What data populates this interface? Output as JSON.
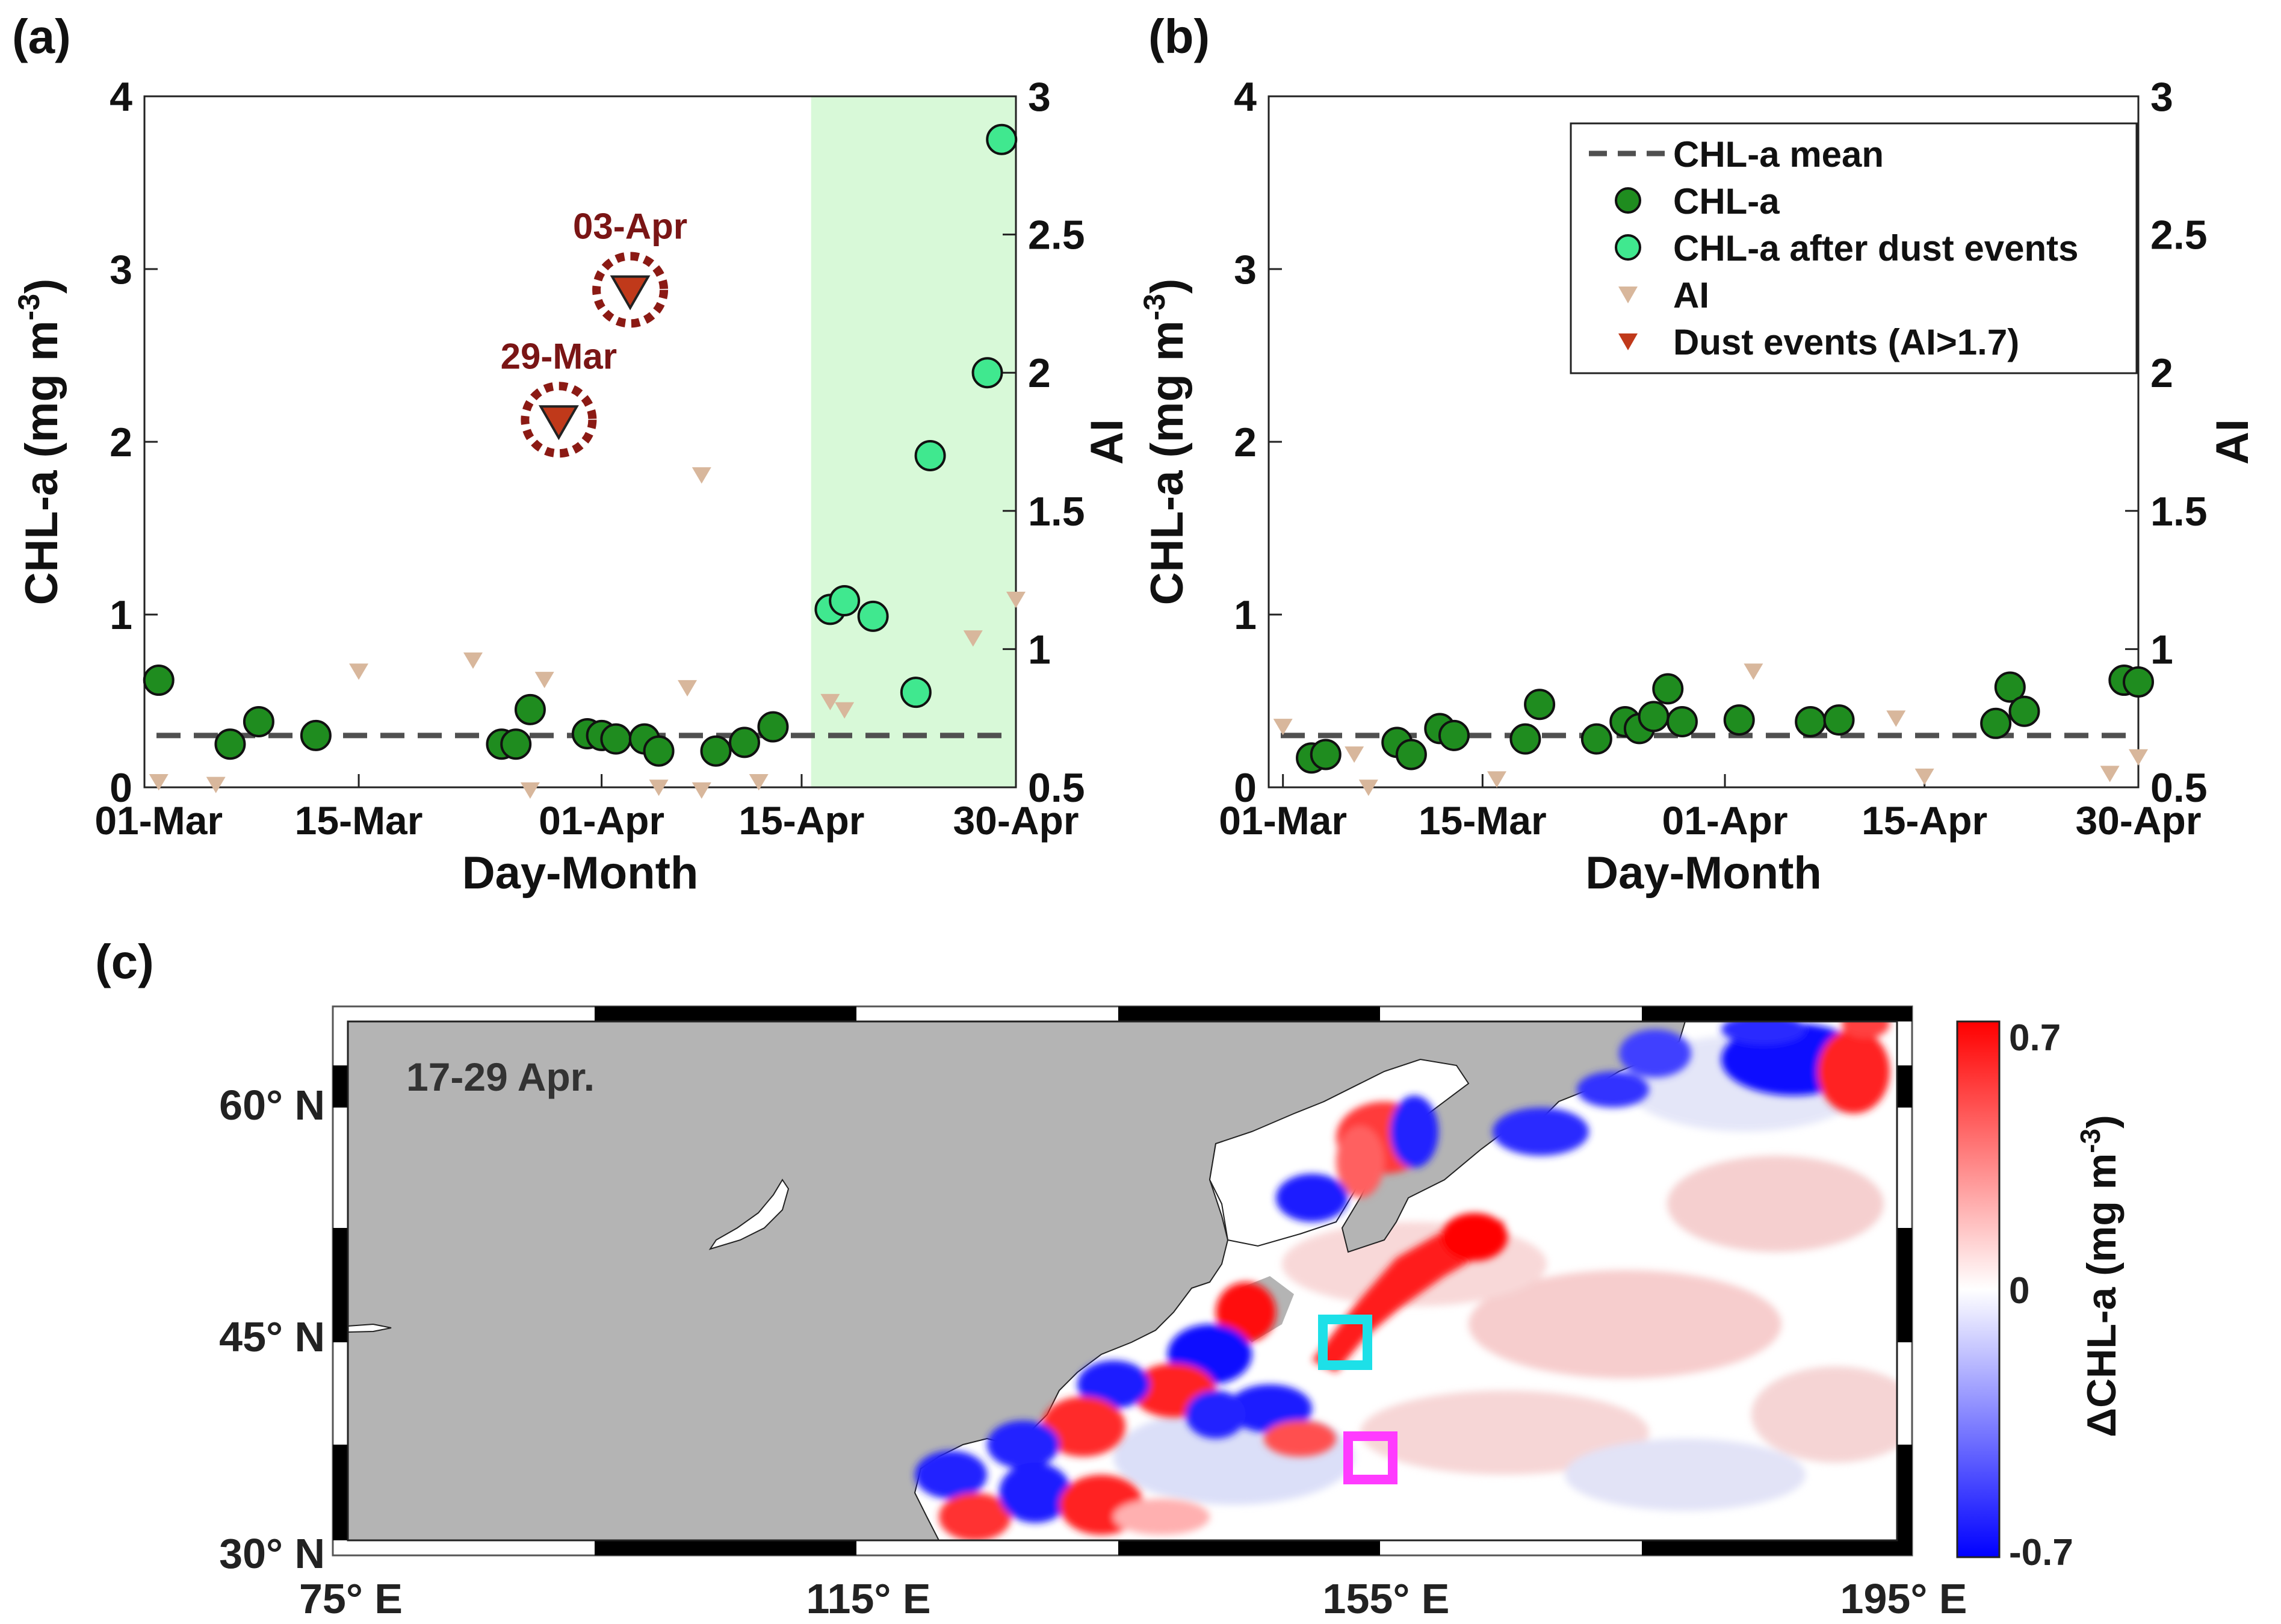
{
  "chart_data": [
    {
      "id": "a",
      "type": "scatter",
      "panel_label": "(a)",
      "xlabel": "Day-Month",
      "ylabel": "CHL-a (mg m",
      "ylabel_sup": "-3",
      "ylabel_close": ")",
      "y2label": "AI",
      "xlim": [
        0,
        61
      ],
      "ylim": [
        0,
        4
      ],
      "y2lim": [
        0.5,
        3
      ],
      "x_ticks": [
        {
          "x": 1,
          "label": "01-Mar"
        },
        {
          "x": 15,
          "label": "15-Mar"
        },
        {
          "x": 32,
          "label": "01-Apr"
        },
        {
          "x": 46,
          "label": "15-Apr"
        },
        {
          "x": 61,
          "label": "30-Apr"
        }
      ],
      "y_ticks": [
        0,
        1,
        2,
        3,
        4
      ],
      "y2_ticks": [
        0.5,
        1,
        1.5,
        2,
        2.5,
        3
      ],
      "chl_mean": 0.3,
      "shade_range": [
        47,
        61
      ],
      "chl": [
        [
          1,
          0.62
        ],
        [
          6,
          0.25
        ],
        [
          8,
          0.38
        ],
        [
          12,
          0.3
        ],
        [
          25,
          0.25
        ],
        [
          26,
          0.25
        ],
        [
          27,
          0.45
        ],
        [
          31,
          0.31
        ],
        [
          32,
          0.3
        ],
        [
          33,
          0.28
        ],
        [
          35,
          0.28
        ],
        [
          36,
          0.21
        ],
        [
          40,
          0.21
        ],
        [
          42,
          0.26
        ],
        [
          44,
          0.35
        ]
      ],
      "chl_after": [
        [
          48,
          1.03
        ],
        [
          49,
          1.08
        ],
        [
          51,
          0.99
        ],
        [
          54,
          0.55
        ],
        [
          55,
          1.92
        ],
        [
          59,
          2.4
        ],
        [
          60,
          3.75
        ]
      ],
      "ai": [
        [
          1,
          0.52
        ],
        [
          5,
          0.51
        ],
        [
          15,
          0.92
        ],
        [
          23,
          0.96
        ],
        [
          28,
          0.89
        ],
        [
          38,
          0.86
        ],
        [
          27,
          0.49
        ],
        [
          36,
          0.5
        ],
        [
          39,
          0.49
        ],
        [
          43,
          0.52
        ],
        [
          48,
          0.81
        ],
        [
          49,
          0.78
        ],
        [
          39,
          1.63
        ],
        [
          58,
          1.04
        ],
        [
          61,
          1.18
        ]
      ],
      "dust_events": [
        [
          29,
          1.83,
          "29-Mar"
        ],
        [
          34,
          2.3,
          "03-Apr"
        ]
      ]
    },
    {
      "id": "b",
      "type": "scatter",
      "panel_label": "(b)",
      "xlabel": "Day-Month",
      "ylabel": "CHL-a (mg m",
      "ylabel_sup": "-3",
      "ylabel_close": ")",
      "y2label": "AI",
      "xlim": [
        0,
        61
      ],
      "ylim": [
        0,
        4
      ],
      "y2lim": [
        0.5,
        3
      ],
      "x_ticks": [
        {
          "x": 1,
          "label": "01-Mar"
        },
        {
          "x": 15,
          "label": "15-Mar"
        },
        {
          "x": 32,
          "label": "01-Apr"
        },
        {
          "x": 46,
          "label": "15-Apr"
        },
        {
          "x": 61,
          "label": "30-Apr"
        }
      ],
      "y_ticks": [
        0,
        1,
        2,
        3,
        4
      ],
      "y2_ticks": [
        0.5,
        1,
        1.5,
        2,
        2.5,
        3
      ],
      "chl_mean": 0.3,
      "chl": [
        [
          3,
          0.17
        ],
        [
          4,
          0.19
        ],
        [
          9,
          0.26
        ],
        [
          10,
          0.19
        ],
        [
          12,
          0.34
        ],
        [
          13,
          0.3
        ],
        [
          18,
          0.28
        ],
        [
          19,
          0.48
        ],
        [
          23,
          0.28
        ],
        [
          25,
          0.38
        ],
        [
          26,
          0.34
        ],
        [
          27,
          0.41
        ],
        [
          28,
          0.57
        ],
        [
          29,
          0.38
        ],
        [
          33,
          0.39
        ],
        [
          38,
          0.38
        ],
        [
          40,
          0.39
        ],
        [
          51,
          0.37
        ],
        [
          52,
          0.58
        ],
        [
          53,
          0.44
        ],
        [
          60,
          0.62
        ],
        [
          61,
          0.61
        ]
      ],
      "ai": [
        [
          1,
          0.72
        ],
        [
          6,
          0.62
        ],
        [
          7,
          0.5
        ],
        [
          16,
          0.53
        ],
        [
          34,
          0.92
        ],
        [
          44,
          0.75
        ],
        [
          46,
          0.54
        ],
        [
          59,
          0.55
        ],
        [
          61,
          0.61
        ]
      ],
      "legend": {
        "position": "top-right",
        "mean": "CHL-a mean",
        "chl": "CHL-a",
        "after": "CHL-a after dust events",
        "ai": "AI",
        "dust": "Dust events (AI>1.7)"
      }
    },
    {
      "id": "c",
      "type": "heatmap",
      "panel_label": "(c)",
      "annotation": "17-29 Apr.",
      "x_ticks": [
        "75° E",
        "115° E",
        "155° E",
        "195° E"
      ],
      "y_ticks": [
        "60° N",
        "45° N",
        "30° N"
      ],
      "lon_range": [
        75,
        195
      ],
      "lat_range": [
        30,
        65
      ],
      "colorbar": {
        "label": "ΔCHL-a  (mg m",
        "label_sup": "-3",
        "label_close": ")",
        "max_label": "0.7",
        "mid_label": "0",
        "min_label": "-0.7",
        "range": [
          -0.7,
          0.7
        ]
      },
      "boxes": [
        {
          "name": "cyan-box",
          "lon": [
            150,
            154
          ],
          "lat": [
            43,
            47
          ]
        },
        {
          "name": "magenta-box",
          "lon": [
            153,
            157
          ],
          "lat": [
            35,
            39
          ]
        }
      ]
    }
  ],
  "colors": {
    "chl": "#1f8c1f",
    "chl_after": "#40e88f",
    "ai": "#d8b79c",
    "dust": "#c0391a",
    "dust_ring": "#8b1a14",
    "shade": "#d8f9d8",
    "mean": "#505050",
    "land": "#b4b4b4",
    "positive": "#ff0000",
    "negative": "#0000ff"
  }
}
